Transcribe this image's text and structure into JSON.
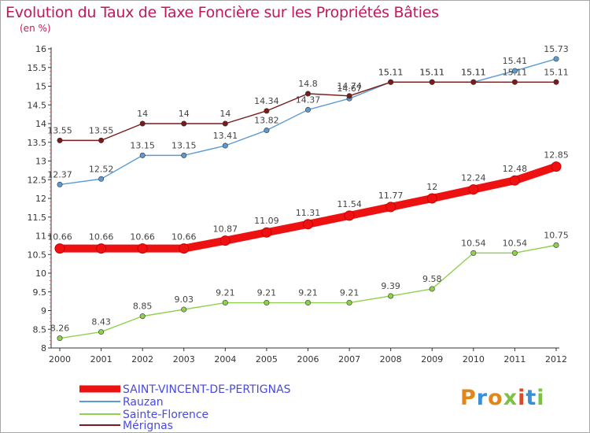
{
  "title": "Evolution du Taux de Taxe Foncière sur les Propriétés Bâties",
  "subtitle": "(en %)",
  "logo": {
    "text": "Proxiti",
    "colors": [
      "#e3861a",
      "#3a8fd6",
      "#e3861a",
      "#7cc242",
      "#d84a2b",
      "#3a8fd6",
      "#7cc242"
    ]
  },
  "chart_data": {
    "type": "line",
    "x": [
      "2000",
      "2001",
      "2002",
      "2003",
      "2004",
      "2005",
      "2006",
      "2007",
      "2008",
      "2009",
      "2010",
      "2011",
      "2012"
    ],
    "ylim": [
      8,
      16
    ],
    "yticks": [
      "8",
      "8.5",
      "9",
      "9.5",
      "10",
      "10.5",
      "11",
      "11.5",
      "12",
      "12.5",
      "13",
      "13.5",
      "14",
      "14.5",
      "15",
      "15.5",
      "16"
    ],
    "grid": false,
    "legend_position": "bottom-left",
    "series": [
      {
        "name": "SAINT-VINCENT-DE-PERTIGNAS",
        "color": "#ee1111",
        "values": [
          10.66,
          10.66,
          10.66,
          10.66,
          10.87,
          11.09,
          11.31,
          11.54,
          11.77,
          12,
          12.24,
          12.48,
          12.85
        ],
        "labels": [
          "10.66",
          "10.66",
          "10.66",
          "10.66",
          "10.87",
          "11.09",
          "11.31",
          "11.54",
          "11.77",
          "12",
          "12.24",
          "12.48",
          "12.85"
        ]
      },
      {
        "name": "Rauzan",
        "color": "#5b9bd5",
        "values": [
          12.37,
          12.52,
          13.15,
          13.15,
          13.41,
          13.82,
          14.37,
          14.67,
          15.11,
          15.11,
          15.11,
          15.41,
          15.73
        ],
        "labels": [
          "12.37",
          "12.52",
          "13.15",
          "13.15",
          "13.41",
          "13.82",
          "14.37",
          "14.67",
          "15.11",
          "15.11",
          "15.11",
          "15.41",
          "15.73"
        ]
      },
      {
        "name": "Sainte-Florence",
        "color": "#8fd14f",
        "values": [
          8.26,
          8.43,
          8.85,
          9.03,
          9.21,
          9.21,
          9.21,
          9.21,
          9.39,
          9.58,
          10.54,
          10.54,
          10.75
        ],
        "labels": [
          "8.26",
          "8.43",
          "8.85",
          "9.03",
          "9.21",
          "9.21",
          "9.21",
          "9.21",
          "9.39",
          "9.58",
          "10.54",
          "10.54",
          "10.75"
        ]
      },
      {
        "name": "Mérignas",
        "color": "#7a1a1a",
        "values": [
          13.55,
          13.55,
          14,
          14,
          14,
          14.34,
          14.8,
          14.74,
          15.11,
          15.11,
          15.11,
          15.11,
          15.11
        ],
        "labels": [
          "13.55",
          "13.55",
          "14",
          "14",
          "14",
          "14.34",
          "14.8",
          "14.74",
          "15.11",
          "15.11",
          "15.11",
          "15.11",
          "15.11"
        ]
      }
    ]
  }
}
